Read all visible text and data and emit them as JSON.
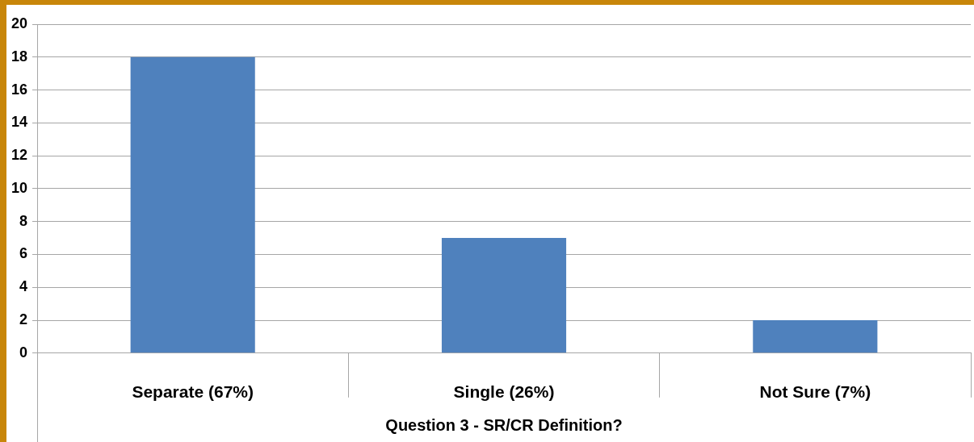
{
  "chart_data": {
    "type": "bar",
    "categories": [
      "Separate (67%)",
      "Single (26%)",
      "Not Sure (7%)"
    ],
    "values": [
      18,
      7,
      2
    ],
    "color": "#4f81bd",
    "xlabel": "Question 3 - SR/CR Definition?",
    "ylim": [
      0,
      20
    ],
    "yticks": [
      0,
      2,
      4,
      6,
      8,
      10,
      12,
      14,
      16,
      18,
      20
    ],
    "grid": "y",
    "legend": false
  }
}
